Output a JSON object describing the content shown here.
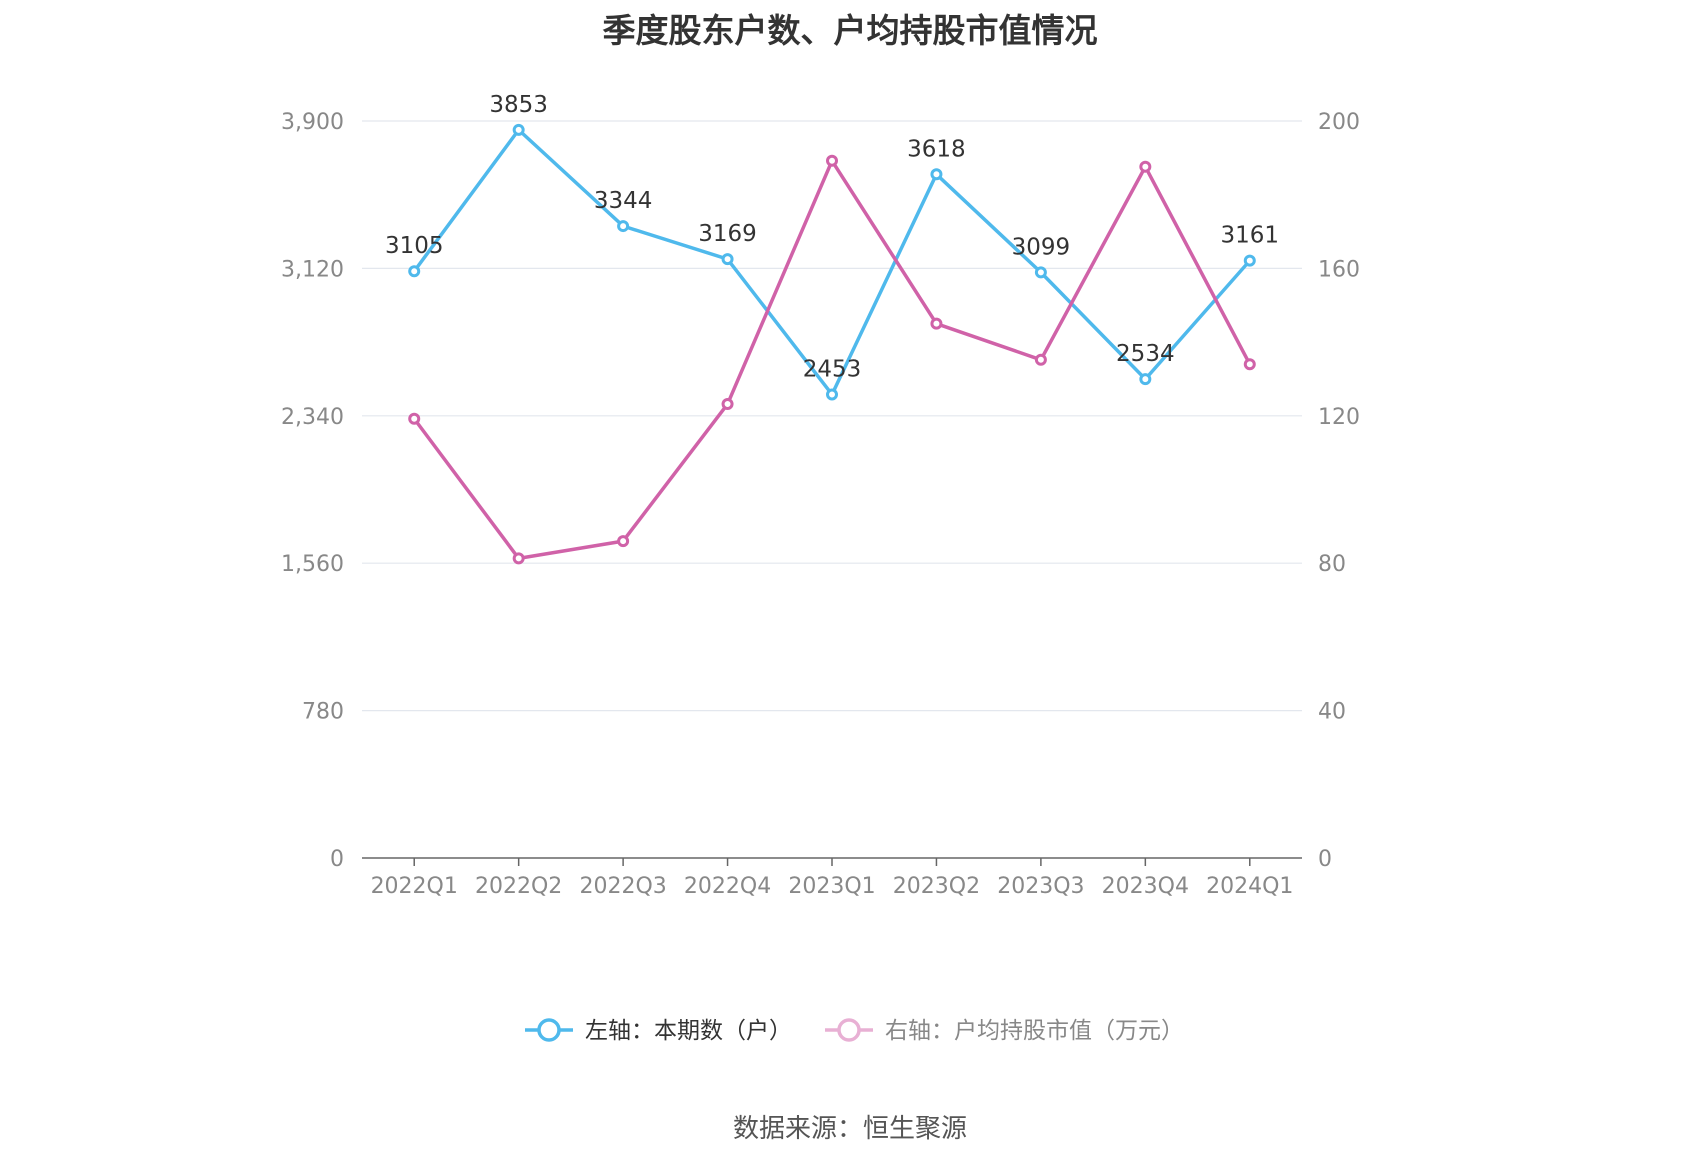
{
  "title": "季度股东户数、户均持股市值情况",
  "source": "数据来源：恒生聚源",
  "chart_data": {
    "type": "line",
    "categories": [
      "2022Q1",
      "2022Q2",
      "2022Q3",
      "2022Q4",
      "2023Q1",
      "2023Q2",
      "2023Q3",
      "2023Q4",
      "2024Q1"
    ],
    "y_left": {
      "min": 0,
      "max": 3900,
      "ticks": [
        0,
        780,
        1560,
        2340,
        3120,
        3900
      ],
      "tick_labels": [
        "0",
        "780",
        "1,560",
        "2,340",
        "3,120",
        "3,900"
      ]
    },
    "y_right": {
      "min": 0,
      "max": 200,
      "ticks": [
        0,
        40,
        80,
        120,
        160,
        200
      ],
      "tick_labels": [
        "0",
        "40",
        "80",
        "120",
        "160",
        "200"
      ]
    },
    "grid": true,
    "legend_position": "bottom",
    "series": [
      {
        "name": "左轴：本期数（户）",
        "axis": "left",
        "color": "#4fb9ec",
        "values": [
          3105,
          3853,
          3344,
          3169,
          2453,
          3618,
          3099,
          2534,
          3161
        ],
        "show_labels": true
      },
      {
        "name": "右轴：户均持股市值（万元）",
        "axis": "right",
        "color": "#d062a8",
        "values": [
          119.2,
          81.3,
          86.0,
          123.2,
          189.2,
          145.0,
          135.2,
          187.6,
          134.0
        ],
        "show_labels": false
      }
    ]
  }
}
